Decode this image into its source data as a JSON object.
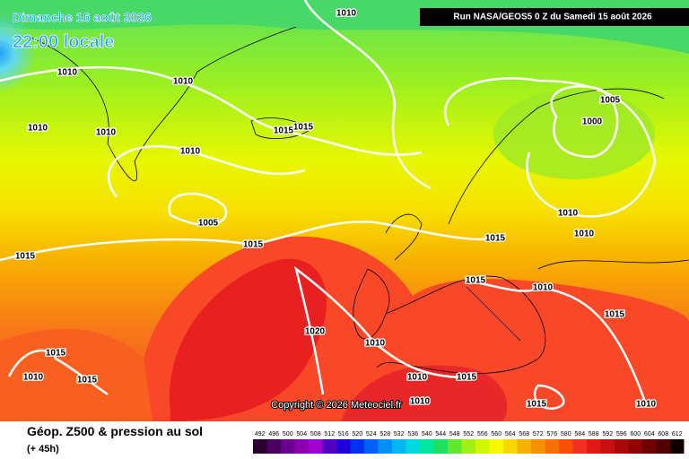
{
  "header": {
    "date": "Dimanche 16 août 2026",
    "time": "22:00 locale",
    "run": "Run NASA/GEOS5 0 Z du Samedi 15 août 2026"
  },
  "copyright": "Copyright © 2026 Meteociel.fr",
  "isobar_labels": [
    "1010",
    "1010",
    "1010",
    "1010",
    "1010",
    "1015",
    "1015",
    "1010",
    "1005",
    "1000",
    "1005",
    "1015",
    "1015",
    "1010",
    "1010",
    "1015",
    "1015",
    "1010",
    "1015",
    "1020",
    "1010",
    "1015",
    "1010",
    "1015",
    "1010",
    "1015",
    "1010",
    "1015",
    "1010"
  ],
  "legend": {
    "title": "Géop. Z500 & pression au sol",
    "subtitle": "(+ 45h)",
    "scale": [
      "492",
      "496",
      "500",
      "504",
      "508",
      "512",
      "516",
      "520",
      "524",
      "528",
      "532",
      "536",
      "540",
      "544",
      "548",
      "552",
      "556",
      "560",
      "564",
      "568",
      "572",
      "576",
      "580",
      "584",
      "588",
      "592",
      "596",
      "600",
      "604",
      "608",
      "612"
    ]
  }
}
